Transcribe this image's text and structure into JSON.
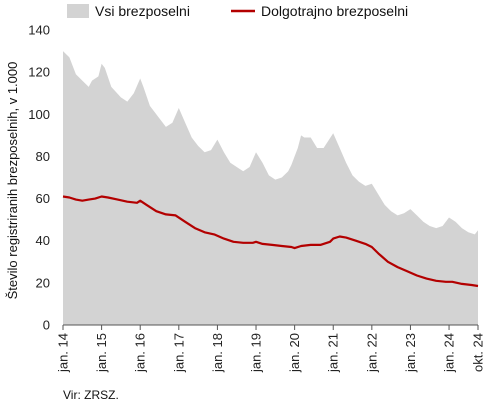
{
  "chart_data": {
    "type": "area",
    "ylabel": "Število registriranih brezposelnih, v 1.000",
    "ylim": [
      0,
      140
    ],
    "yticks": [
      0,
      20,
      40,
      60,
      80,
      100,
      120,
      140
    ],
    "xticks": [
      "jan. 14",
      "jan. 15",
      "jan. 16",
      "jan. 17",
      "jan. 18",
      "jan. 19",
      "jan. 20",
      "jan. 21",
      "jan. 22",
      "jan. 23",
      "jan. 24",
      "okt. 24"
    ],
    "x_start": "2014-01",
    "x_end": "2024-10",
    "legend_position": "top",
    "grid": false,
    "series": [
      {
        "name": "Vsi brezposelni",
        "type": "area",
        "color": "#d3d3d3",
        "points": [
          [
            "2014-01",
            130
          ],
          [
            "2014-03",
            127
          ],
          [
            "2014-05",
            119
          ],
          [
            "2014-07",
            116
          ],
          [
            "2014-09",
            113
          ],
          [
            "2014-10",
            116
          ],
          [
            "2014-12",
            118
          ],
          [
            "2015-01",
            124
          ],
          [
            "2015-02",
            122
          ],
          [
            "2015-04",
            113
          ],
          [
            "2015-07",
            108
          ],
          [
            "2015-09",
            106
          ],
          [
            "2015-10",
            108
          ],
          [
            "2015-11",
            110
          ],
          [
            "2016-01",
            117
          ],
          [
            "2016-02",
            113
          ],
          [
            "2016-04",
            104
          ],
          [
            "2016-07",
            98
          ],
          [
            "2016-09",
            94
          ],
          [
            "2016-11",
            96
          ],
          [
            "2017-01",
            103
          ],
          [
            "2017-03",
            96
          ],
          [
            "2017-05",
            89
          ],
          [
            "2017-07",
            85
          ],
          [
            "2017-09",
            82
          ],
          [
            "2017-11",
            83
          ],
          [
            "2018-01",
            88
          ],
          [
            "2018-03",
            82
          ],
          [
            "2018-05",
            77
          ],
          [
            "2018-07",
            75
          ],
          [
            "2018-09",
            73
          ],
          [
            "2018-11",
            75
          ],
          [
            "2019-01",
            82
          ],
          [
            "2019-03",
            77
          ],
          [
            "2019-05",
            71
          ],
          [
            "2019-07",
            69
          ],
          [
            "2019-09",
            70
          ],
          [
            "2019-11",
            73
          ],
          [
            "2019-12",
            76
          ],
          [
            "2020-01",
            80
          ],
          [
            "2020-02",
            84
          ],
          [
            "2020-03",
            90
          ],
          [
            "2020-04",
            89
          ],
          [
            "2020-06",
            89
          ],
          [
            "2020-08",
            84
          ],
          [
            "2020-10",
            84
          ],
          [
            "2021-01",
            91
          ],
          [
            "2021-03",
            84
          ],
          [
            "2021-05",
            77
          ],
          [
            "2021-07",
            71
          ],
          [
            "2021-09",
            68
          ],
          [
            "2021-11",
            66
          ],
          [
            "2022-01",
            67
          ],
          [
            "2022-03",
            62
          ],
          [
            "2022-05",
            57
          ],
          [
            "2022-07",
            54
          ],
          [
            "2022-09",
            52
          ],
          [
            "2022-11",
            53
          ],
          [
            "2023-01",
            55
          ],
          [
            "2023-03",
            52
          ],
          [
            "2023-05",
            49
          ],
          [
            "2023-07",
            47
          ],
          [
            "2023-09",
            46
          ],
          [
            "2023-11",
            47
          ],
          [
            "2024-01",
            51
          ],
          [
            "2024-03",
            49
          ],
          [
            "2024-05",
            46
          ],
          [
            "2024-07",
            44
          ],
          [
            "2024-09",
            43
          ],
          [
            "2024-10",
            45
          ]
        ]
      },
      {
        "name": "Dolgotrajno brezposelni",
        "type": "line",
        "color": "#b30000",
        "points": [
          [
            "2014-01",
            61
          ],
          [
            "2014-03",
            60.5
          ],
          [
            "2014-05",
            59.5
          ],
          [
            "2014-07",
            59
          ],
          [
            "2014-09",
            59.5
          ],
          [
            "2014-11",
            60
          ],
          [
            "2015-01",
            61
          ],
          [
            "2015-03",
            60.5
          ],
          [
            "2015-06",
            59.5
          ],
          [
            "2015-09",
            58.5
          ],
          [
            "2015-12",
            58
          ],
          [
            "2016-01",
            59
          ],
          [
            "2016-03",
            57
          ],
          [
            "2016-06",
            54
          ],
          [
            "2016-09",
            52.5
          ],
          [
            "2016-12",
            52
          ],
          [
            "2017-03",
            49
          ],
          [
            "2017-06",
            46
          ],
          [
            "2017-09",
            44
          ],
          [
            "2017-12",
            43
          ],
          [
            "2018-03",
            41
          ],
          [
            "2018-06",
            39.5
          ],
          [
            "2018-09",
            39
          ],
          [
            "2018-12",
            39
          ],
          [
            "2019-01",
            39.5
          ],
          [
            "2019-03",
            38.5
          ],
          [
            "2019-06",
            38
          ],
          [
            "2019-09",
            37.5
          ],
          [
            "2019-12",
            37
          ],
          [
            "2020-01",
            36.5
          ],
          [
            "2020-03",
            37.5
          ],
          [
            "2020-06",
            38
          ],
          [
            "2020-09",
            38
          ],
          [
            "2020-12",
            39.5
          ],
          [
            "2021-01",
            41
          ],
          [
            "2021-03",
            42
          ],
          [
            "2021-05",
            41.5
          ],
          [
            "2021-08",
            40
          ],
          [
            "2021-11",
            38.5
          ],
          [
            "2022-01",
            37
          ],
          [
            "2022-03",
            34
          ],
          [
            "2022-06",
            30
          ],
          [
            "2022-09",
            27.5
          ],
          [
            "2022-12",
            25.5
          ],
          [
            "2023-03",
            23.5
          ],
          [
            "2023-06",
            22
          ],
          [
            "2023-09",
            21
          ],
          [
            "2023-12",
            20.5
          ],
          [
            "2024-02",
            20.5
          ],
          [
            "2024-05",
            19.5
          ],
          [
            "2024-08",
            19
          ],
          [
            "2024-10",
            18.5
          ]
        ]
      }
    ],
    "source": "Vir: ZRSZ."
  }
}
